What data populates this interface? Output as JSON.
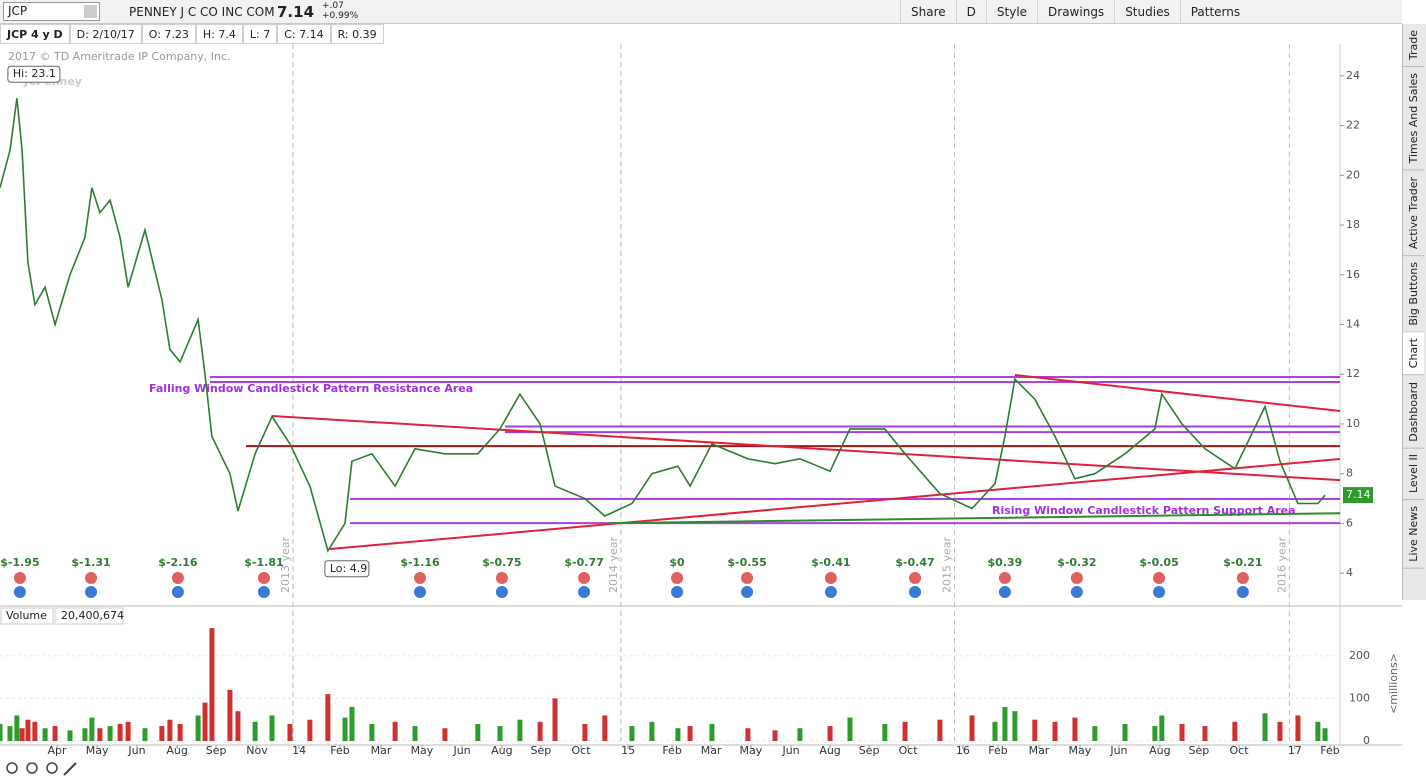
{
  "header": {
    "symbol": "JCP",
    "company": "PENNEY J C CO INC COM",
    "last": "7.14",
    "change": "+.07",
    "change_pct": "+0.99%",
    "buttons": [
      "Share",
      "D",
      "Style",
      "Drawings",
      "Studies",
      "Patterns"
    ]
  },
  "quote_bar": [
    "JCP 4 y D",
    "D: 2/10/17",
    "O: 7.23",
    "H: 7.4",
    "L: 7",
    "C: 7.14",
    "R: 0.39"
  ],
  "copyright": "2017 © TD Ameritrade IP Company, Inc.",
  "logo": "JCPenney",
  "sidebar_tabs": [
    "Trade",
    "Times And Sales",
    "Active Trader",
    "Big Buttons",
    "Chart",
    "Dashboard",
    "Level II",
    "Live News"
  ],
  "chart_data": [
    {
      "type": "line",
      "x": [
        0.94,
        1.3,
        1.55,
        1.74,
        1.95,
        2.2,
        2.57,
        2.93,
        3.47,
        4.01,
        4.26,
        4.55,
        4.92,
        5.28,
        5.57,
        6.18,
        6.79,
        7.08,
        7.45,
        8.1,
        8.35,
        8.6,
        9.25,
        9.54,
        10.16,
        10.77,
        11.42,
        12.14,
        12.79,
        13.41,
        13.66,
        14.38,
        15.22,
        15.94,
        17.02,
        18.21,
        19.01,
        19.73,
        20.46,
        21.0,
        22.08,
        22.8,
        23.78,
        24.5,
        25.44,
        25.88,
        26.67,
        27.97,
        28.95,
        29.85,
        30.94,
        31.66,
        32.92,
        33.65,
        34.91,
        36.07,
        36.9,
        37.26,
        37.62,
        38.34,
        39.07,
        39.79,
        40.51,
        41.6,
        42.68,
        42.93,
        43.66,
        44.49,
        45.57,
        46.66,
        47.2,
        47.85,
        48.57,
        48.83
      ],
      "series": [
        {
          "color": "#2e7d32",
          "values": [
            19.5,
            21,
            23.1,
            21,
            16.5,
            14.8,
            15.5,
            14,
            16,
            17.5,
            19.5,
            18.5,
            19,
            17.5,
            15.5,
            17.8,
            15,
            13,
            12.5,
            14.2,
            12,
            9.5,
            8,
            6.5,
            8.8,
            10.3,
            9.2,
            7.5,
            4.9,
            6,
            8.5,
            8.8,
            7.5,
            9,
            8.8,
            8.8,
            9.8,
            11.2,
            10,
            7.5,
            7,
            6.3,
            6.8,
            8,
            8.3,
            7.5,
            9.2,
            8.6,
            8.4,
            8.6,
            8.1,
            9.8,
            9.8,
            8.8,
            7.2,
            6.6,
            7.6,
            9.5,
            11.8,
            11,
            9.5,
            7.8,
            8,
            8.8,
            9.8,
            11.2,
            10,
            9,
            8.2,
            10.7,
            8.5,
            6.8,
            6.8,
            7.14
          ]
        }
      ],
      "xlim": [
        0.94,
        49.37
      ],
      "ylim": [
        2.8,
        25.2
      ],
      "yticks": [
        4,
        6,
        8,
        10,
        12,
        14,
        16,
        18,
        20,
        22,
        24
      ],
      "hi_label": "Hi: 23.1",
      "lo_label": "Lo: 4.9",
      "last_tag": 7.14,
      "year_markers": [
        {
          "value": 11.53,
          "label": "2013 year"
        },
        {
          "value": 23.38,
          "label": "2014 year"
        },
        {
          "value": 35.44,
          "label": "2015 year"
        },
        {
          "value": 47.54,
          "label": "2016 year"
        }
      ],
      "earnings": [
        {
          "x": 1.66,
          "label": "$-1.95"
        },
        {
          "x": 4.23,
          "label": "$-1.31"
        },
        {
          "x": 7.37,
          "label": "$-2.16"
        },
        {
          "x": 10.48,
          "label": "$-1.81"
        },
        {
          "x": 16.12,
          "label": "$-1.16"
        },
        {
          "x": 19.08,
          "label": "$-0.75"
        },
        {
          "x": 22.05,
          "label": "$-0.77"
        },
        {
          "x": 25.41,
          "label": "$0"
        },
        {
          "x": 27.94,
          "label": "$-0.55"
        },
        {
          "x": 30.97,
          "label": "$-0.41"
        },
        {
          "x": 34.01,
          "label": "$-0.47"
        },
        {
          "x": 37.26,
          "label": "$0.39"
        },
        {
          "x": 39.86,
          "label": "$-0.32"
        },
        {
          "x": 42.83,
          "label": "$-0.05"
        },
        {
          "x": 45.86,
          "label": "$-0.21"
        }
      ],
      "annotations": [
        "Falling Window Candlestick Pattern Resistance Area",
        "Rising Window Candlestick Pattern Support Area"
      ],
      "drawings": [
        {
          "color": "#b040e0",
          "points": [
            [
              8.53,
              11.89
            ],
            [
              49.37,
              11.89
            ]
          ]
        },
        {
          "color": "#b040e0",
          "points": [
            [
              8.53,
              11.69
            ],
            [
              49.37,
              11.69
            ]
          ]
        },
        {
          "color": "#a040e0",
          "points": [
            [
              19.19,
              9.9
            ],
            [
              49.37,
              9.9
            ]
          ]
        },
        {
          "color": "#a040e0",
          "points": [
            [
              19.19,
              9.67
            ],
            [
              49.37,
              9.67
            ]
          ]
        },
        {
          "color": "#a01818",
          "points": [
            [
              9.83,
              9.11
            ],
            [
              49.37,
              9.11
            ]
          ]
        },
        {
          "color": "#b040e0",
          "points": [
            [
              13.59,
              6.98
            ],
            [
              49.37,
              6.98
            ]
          ]
        },
        {
          "color": "#b040e0",
          "points": [
            [
              13.59,
              6.01
            ],
            [
              49.37,
              6.01
            ]
          ]
        },
        {
          "color": "#e0203c",
          "points": [
            [
              10.77,
              10.32
            ],
            [
              49.37,
              7.74
            ]
          ]
        },
        {
          "color": "#e0203c",
          "points": [
            [
              12.86,
              4.97
            ],
            [
              49.37,
              8.59
            ]
          ]
        },
        {
          "color": "#e0203c",
          "points": [
            [
              37.62,
              11.97
            ],
            [
              49.37,
              10.52
            ]
          ]
        },
        {
          "color": "#2e8b2e",
          "points": [
            [
              22.98,
              6.01
            ],
            [
              49.37,
              6.41
            ]
          ]
        }
      ]
    },
    {
      "type": "bar",
      "title": "Volume",
      "current": "20,400,674",
      "ylabel": "<millions>",
      "x": [
        0.94,
        1.3,
        1.55,
        1.74,
        1.95,
        2.2,
        2.57,
        2.93,
        3.47,
        4.01,
        4.26,
        4.55,
        4.92,
        5.28,
        5.57,
        6.18,
        6.79,
        7.08,
        7.45,
        8.1,
        8.35,
        8.6,
        9.25,
        9.54,
        10.16,
        10.77,
        11.42,
        12.14,
        12.79,
        13.41,
        13.66,
        14.38,
        15.22,
        15.94,
        17.02,
        18.21,
        19.01,
        19.73,
        20.46,
        21.0,
        22.08,
        22.8,
        23.78,
        24.5,
        25.44,
        25.88,
        26.67,
        27.97,
        28.95,
        29.85,
        30.94,
        31.66,
        32.92,
        33.65,
        34.91,
        36.07,
        36.9,
        37.26,
        37.62,
        38.34,
        39.07,
        39.79,
        40.51,
        41.6,
        42.68,
        42.93,
        43.66,
        44.49,
        45.57,
        46.66,
        47.2,
        47.85,
        48.57,
        48.83
      ],
      "values": [
        40,
        35,
        60,
        30,
        50,
        45,
        30,
        35,
        25,
        30,
        55,
        30,
        35,
        40,
        45,
        30,
        35,
        50,
        40,
        60,
        90,
        265,
        120,
        70,
        45,
        60,
        40,
        50,
        110,
        55,
        80,
        40,
        45,
        35,
        30,
        40,
        35,
        50,
        45,
        100,
        40,
        60,
        35,
        45,
        30,
        35,
        40,
        30,
        25,
        30,
        35,
        55,
        40,
        45,
        50,
        60,
        45,
        80,
        70,
        50,
        45,
        55,
        35,
        40,
        35,
        60,
        40,
        35,
        45,
        65,
        45,
        60,
        45,
        30
      ],
      "xlim": [
        0.94,
        49.37
      ],
      "ylim": [
        0,
        270
      ],
      "yticks": [
        0,
        100,
        200
      ],
      "xticks": [
        {
          "value": 3.0,
          "label": "Apr"
        },
        {
          "value": 4.45,
          "label": "May"
        },
        {
          "value": 5.89,
          "label": "Jun"
        },
        {
          "value": 7.34,
          "label": "Aug"
        },
        {
          "value": 8.75,
          "label": "Sep"
        },
        {
          "value": 10.23,
          "label": "Nov"
        },
        {
          "value": 11.75,
          "label": "14"
        },
        {
          "value": 13.23,
          "label": "Feb"
        },
        {
          "value": 14.71,
          "label": "Mar"
        },
        {
          "value": 16.19,
          "label": "May"
        },
        {
          "value": 17.64,
          "label": "Jun"
        },
        {
          "value": 19.08,
          "label": "Aug"
        },
        {
          "value": 20.49,
          "label": "Sep"
        },
        {
          "value": 21.94,
          "label": "Oct"
        },
        {
          "value": 23.64,
          "label": "15"
        },
        {
          "value": 25.23,
          "label": "Feb"
        },
        {
          "value": 26.64,
          "label": "Mar"
        },
        {
          "value": 28.08,
          "label": "May"
        },
        {
          "value": 29.53,
          "label": "Jun"
        },
        {
          "value": 30.94,
          "label": "Aug"
        },
        {
          "value": 32.35,
          "label": "Sep"
        },
        {
          "value": 33.76,
          "label": "Oct"
        },
        {
          "value": 35.74,
          "label": "16"
        },
        {
          "value": 37.01,
          "label": "Feb"
        },
        {
          "value": 38.49,
          "label": "Mar"
        },
        {
          "value": 39.97,
          "label": "May"
        },
        {
          "value": 41.38,
          "label": "Jun"
        },
        {
          "value": 42.86,
          "label": "Aug"
        },
        {
          "value": 44.27,
          "label": "Sep"
        },
        {
          "value": 45.72,
          "label": "Oct"
        },
        {
          "value": 47.74,
          "label": "17"
        },
        {
          "value": 49.01,
          "label": "Feb"
        }
      ]
    }
  ]
}
